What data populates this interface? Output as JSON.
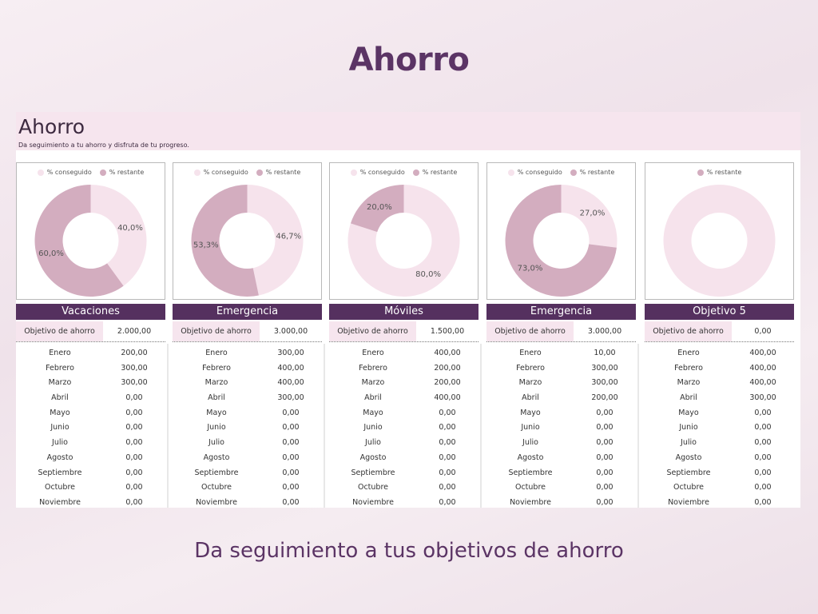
{
  "slide": {
    "title": "Ahorro",
    "subtitle": "Da seguimiento a tus objetivos de ahorro"
  },
  "sheet": {
    "title": "Ahorro",
    "description": "Da seguimiento a tu ahorro y disfruta de tu progreso."
  },
  "legend": {
    "achieved": "% conseguido",
    "remaining": "% restante"
  },
  "colors": {
    "achieved": "#f6e3ec",
    "remaining": "#d3adbf",
    "header": "#55305f",
    "goal_bg": "#f6e5ee"
  },
  "goal_label": "Objetivo de ahorro",
  "goals": [
    {
      "name": "Vacaciones",
      "target": "2.000,00",
      "chart": {
        "remaining_pct": 60.0,
        "achieved_pct": 40.0,
        "remaining_label": "60,0%",
        "achieved_label": "40,0%",
        "show_achieved_legend": true
      },
      "months": [
        "200,00",
        "300,00",
        "300,00",
        "0,00",
        "0,00",
        "0,00",
        "0,00",
        "0,00",
        "0,00",
        "0,00",
        "0,00"
      ]
    },
    {
      "name": "Emergencia",
      "target": "3.000,00",
      "chart": {
        "remaining_pct": 53.3,
        "achieved_pct": 46.7,
        "remaining_label": "53,3%",
        "achieved_label": "46,7%",
        "show_achieved_legend": true
      },
      "months": [
        "300,00",
        "400,00",
        "400,00",
        "300,00",
        "0,00",
        "0,00",
        "0,00",
        "0,00",
        "0,00",
        "0,00",
        "0,00"
      ]
    },
    {
      "name": "Móviles",
      "target": "1.500,00",
      "chart": {
        "remaining_pct": 20.0,
        "achieved_pct": 80.0,
        "remaining_label": "20,0%",
        "achieved_label": "80,0%",
        "show_achieved_legend": true
      },
      "months": [
        "400,00",
        "200,00",
        "200,00",
        "400,00",
        "0,00",
        "0,00",
        "0,00",
        "0,00",
        "0,00",
        "0,00",
        "0,00"
      ]
    },
    {
      "name": "Emergencia",
      "target": "3.000,00",
      "chart": {
        "remaining_pct": 73.0,
        "achieved_pct": 27.0,
        "remaining_label": "73,0%",
        "achieved_label": "27,0%",
        "show_achieved_legend": true
      },
      "months": [
        "10,00",
        "300,00",
        "300,00",
        "200,00",
        "0,00",
        "0,00",
        "0,00",
        "0,00",
        "0,00",
        "0,00",
        "0,00"
      ]
    },
    {
      "name": "Objetivo 5",
      "target": "0,00",
      "chart": {
        "remaining_pct": 0,
        "achieved_pct": 0,
        "remaining_label": "",
        "achieved_label": "",
        "show_achieved_legend": false
      },
      "months": [
        "400,00",
        "400,00",
        "400,00",
        "300,00",
        "0,00",
        "0,00",
        "0,00",
        "0,00",
        "0,00",
        "0,00",
        "0,00"
      ]
    }
  ],
  "month_names": [
    "Enero",
    "Febrero",
    "Marzo",
    "Abril",
    "Mayo",
    "Junio",
    "Julio",
    "Agosto",
    "Septiembre",
    "Octubre",
    "Noviembre"
  ]
}
